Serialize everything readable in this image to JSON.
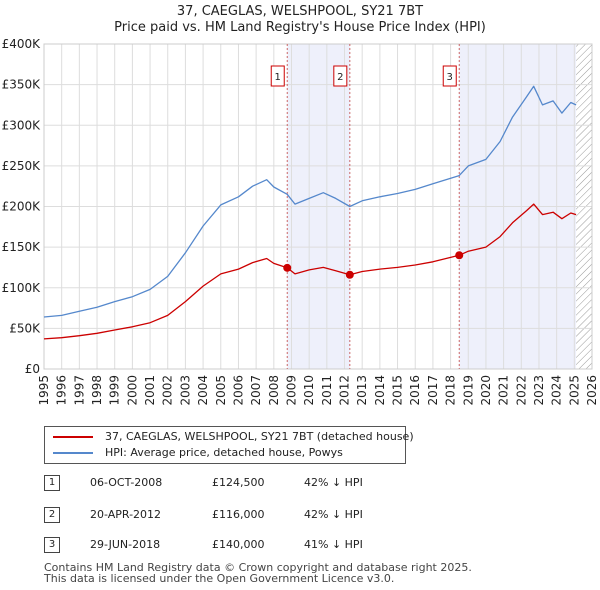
{
  "title": "37, CAEGLAS, WELSHPOOL, SY21 7BT",
  "subtitle": "Price paid vs. HM Land Registry's House Price Index (HPI)",
  "chart_data": {
    "type": "line",
    "xlim": [
      1995,
      2026
    ],
    "ylim": [
      0,
      400000
    ],
    "x_ticks": [
      "1995",
      "1996",
      "1997",
      "1998",
      "1999",
      "2000",
      "2001",
      "2002",
      "2003",
      "2004",
      "2005",
      "2006",
      "2007",
      "2008",
      "2009",
      "2010",
      "2011",
      "2012",
      "2013",
      "2014",
      "2015",
      "2016",
      "2017",
      "2018",
      "2019",
      "2020",
      "2021",
      "2022",
      "2023",
      "2024",
      "2025",
      "2026"
    ],
    "y_ticks": [
      {
        "value": 0,
        "label": "£0"
      },
      {
        "value": 50000,
        "label": "£50K"
      },
      {
        "value": 100000,
        "label": "£100K"
      },
      {
        "value": 150000,
        "label": "£150K"
      },
      {
        "value": 200000,
        "label": "£200K"
      },
      {
        "value": 250000,
        "label": "£250K"
      },
      {
        "value": 300000,
        "label": "£300K"
      },
      {
        "value": 350000,
        "label": "£350K"
      },
      {
        "value": 400000,
        "label": "£400K"
      }
    ],
    "grid": true,
    "shaded_ranges": [
      [
        2008.76,
        2012.3
      ],
      [
        2018.49,
        2025.1
      ]
    ],
    "data_end": 2025.1,
    "series": [
      {
        "name": "37, CAEGLAS, WELSHPOOL, SY21 7BT (detached house)",
        "color": "#cc0000",
        "points": [
          [
            1995.0,
            37000
          ],
          [
            1996.0,
            38500
          ],
          [
            1997.0,
            41000
          ],
          [
            1998.0,
            44000
          ],
          [
            1999.0,
            48000
          ],
          [
            2000.0,
            52000
          ],
          [
            2001.0,
            57000
          ],
          [
            2002.0,
            66000
          ],
          [
            2003.0,
            83000
          ],
          [
            2004.0,
            102000
          ],
          [
            2005.0,
            117000
          ],
          [
            2006.0,
            123000
          ],
          [
            2006.8,
            131000
          ],
          [
            2007.6,
            136000
          ],
          [
            2008.0,
            130000
          ],
          [
            2008.76,
            124500
          ],
          [
            2009.2,
            117000
          ],
          [
            2010.0,
            122000
          ],
          [
            2010.8,
            125000
          ],
          [
            2011.5,
            121000
          ],
          [
            2012.3,
            116000
          ],
          [
            2013.0,
            120000
          ],
          [
            2014.0,
            123000
          ],
          [
            2015.0,
            125000
          ],
          [
            2016.0,
            128000
          ],
          [
            2017.0,
            132000
          ],
          [
            2018.49,
            140000
          ],
          [
            2019.0,
            145000
          ],
          [
            2020.0,
            150000
          ],
          [
            2020.8,
            163000
          ],
          [
            2021.5,
            180000
          ],
          [
            2022.3,
            195000
          ],
          [
            2022.7,
            203000
          ],
          [
            2023.2,
            190000
          ],
          [
            2023.8,
            193000
          ],
          [
            2024.3,
            185000
          ],
          [
            2024.8,
            192000
          ],
          [
            2025.1,
            190000
          ]
        ]
      },
      {
        "name": "HPI: Average price, detached house, Powys",
        "color": "#5588cc",
        "points": [
          [
            1995.0,
            64000
          ],
          [
            1996.0,
            66000
          ],
          [
            1997.0,
            71000
          ],
          [
            1998.0,
            76000
          ],
          [
            1999.0,
            83000
          ],
          [
            2000.0,
            89000
          ],
          [
            2001.0,
            98000
          ],
          [
            2002.0,
            114000
          ],
          [
            2003.0,
            143000
          ],
          [
            2004.0,
            176000
          ],
          [
            2005.0,
            202000
          ],
          [
            2006.0,
            212000
          ],
          [
            2006.8,
            225000
          ],
          [
            2007.6,
            233000
          ],
          [
            2008.0,
            224000
          ],
          [
            2008.76,
            215000
          ],
          [
            2009.2,
            203000
          ],
          [
            2010.0,
            210000
          ],
          [
            2010.8,
            217000
          ],
          [
            2011.5,
            210000
          ],
          [
            2012.3,
            200000
          ],
          [
            2013.0,
            207000
          ],
          [
            2014.0,
            212000
          ],
          [
            2015.0,
            216000
          ],
          [
            2016.0,
            221000
          ],
          [
            2017.0,
            228000
          ],
          [
            2018.49,
            238000
          ],
          [
            2019.0,
            250000
          ],
          [
            2020.0,
            258000
          ],
          [
            2020.8,
            280000
          ],
          [
            2021.5,
            310000
          ],
          [
            2022.3,
            335000
          ],
          [
            2022.7,
            348000
          ],
          [
            2023.2,
            325000
          ],
          [
            2023.8,
            330000
          ],
          [
            2024.3,
            315000
          ],
          [
            2024.8,
            328000
          ],
          [
            2025.1,
            325000
          ]
        ]
      }
    ],
    "sales": [
      {
        "label": "1",
        "x": 2008.76,
        "y": 124500
      },
      {
        "label": "2",
        "x": 2012.3,
        "y": 116000
      },
      {
        "label": "3",
        "x": 2018.49,
        "y": 140000
      }
    ]
  },
  "legend": [
    {
      "label": "37, CAEGLAS, WELSHPOOL, SY21 7BT (detached house)",
      "color": "#cc0000"
    },
    {
      "label": "HPI: Average price, detached house, Powys",
      "color": "#5588cc"
    }
  ],
  "sales_table": [
    {
      "num": "1",
      "date": "06-OCT-2008",
      "price": "£124,500",
      "hpi": "42% ↓ HPI"
    },
    {
      "num": "2",
      "date": "20-APR-2012",
      "price": "£116,000",
      "hpi": "42% ↓ HPI"
    },
    {
      "num": "3",
      "date": "29-JUN-2018",
      "price": "£140,000",
      "hpi": "41% ↓ HPI"
    }
  ],
  "footer": {
    "line1": "Contains HM Land Registry data © Crown copyright and database right 2025.",
    "line2": "This data is licensed under the Open Government Licence v3.0."
  },
  "colors": {
    "shade": "#eef0fb",
    "grid": "#dddddd",
    "marker_line": "#cc6666",
    "hatch": "#999999"
  }
}
